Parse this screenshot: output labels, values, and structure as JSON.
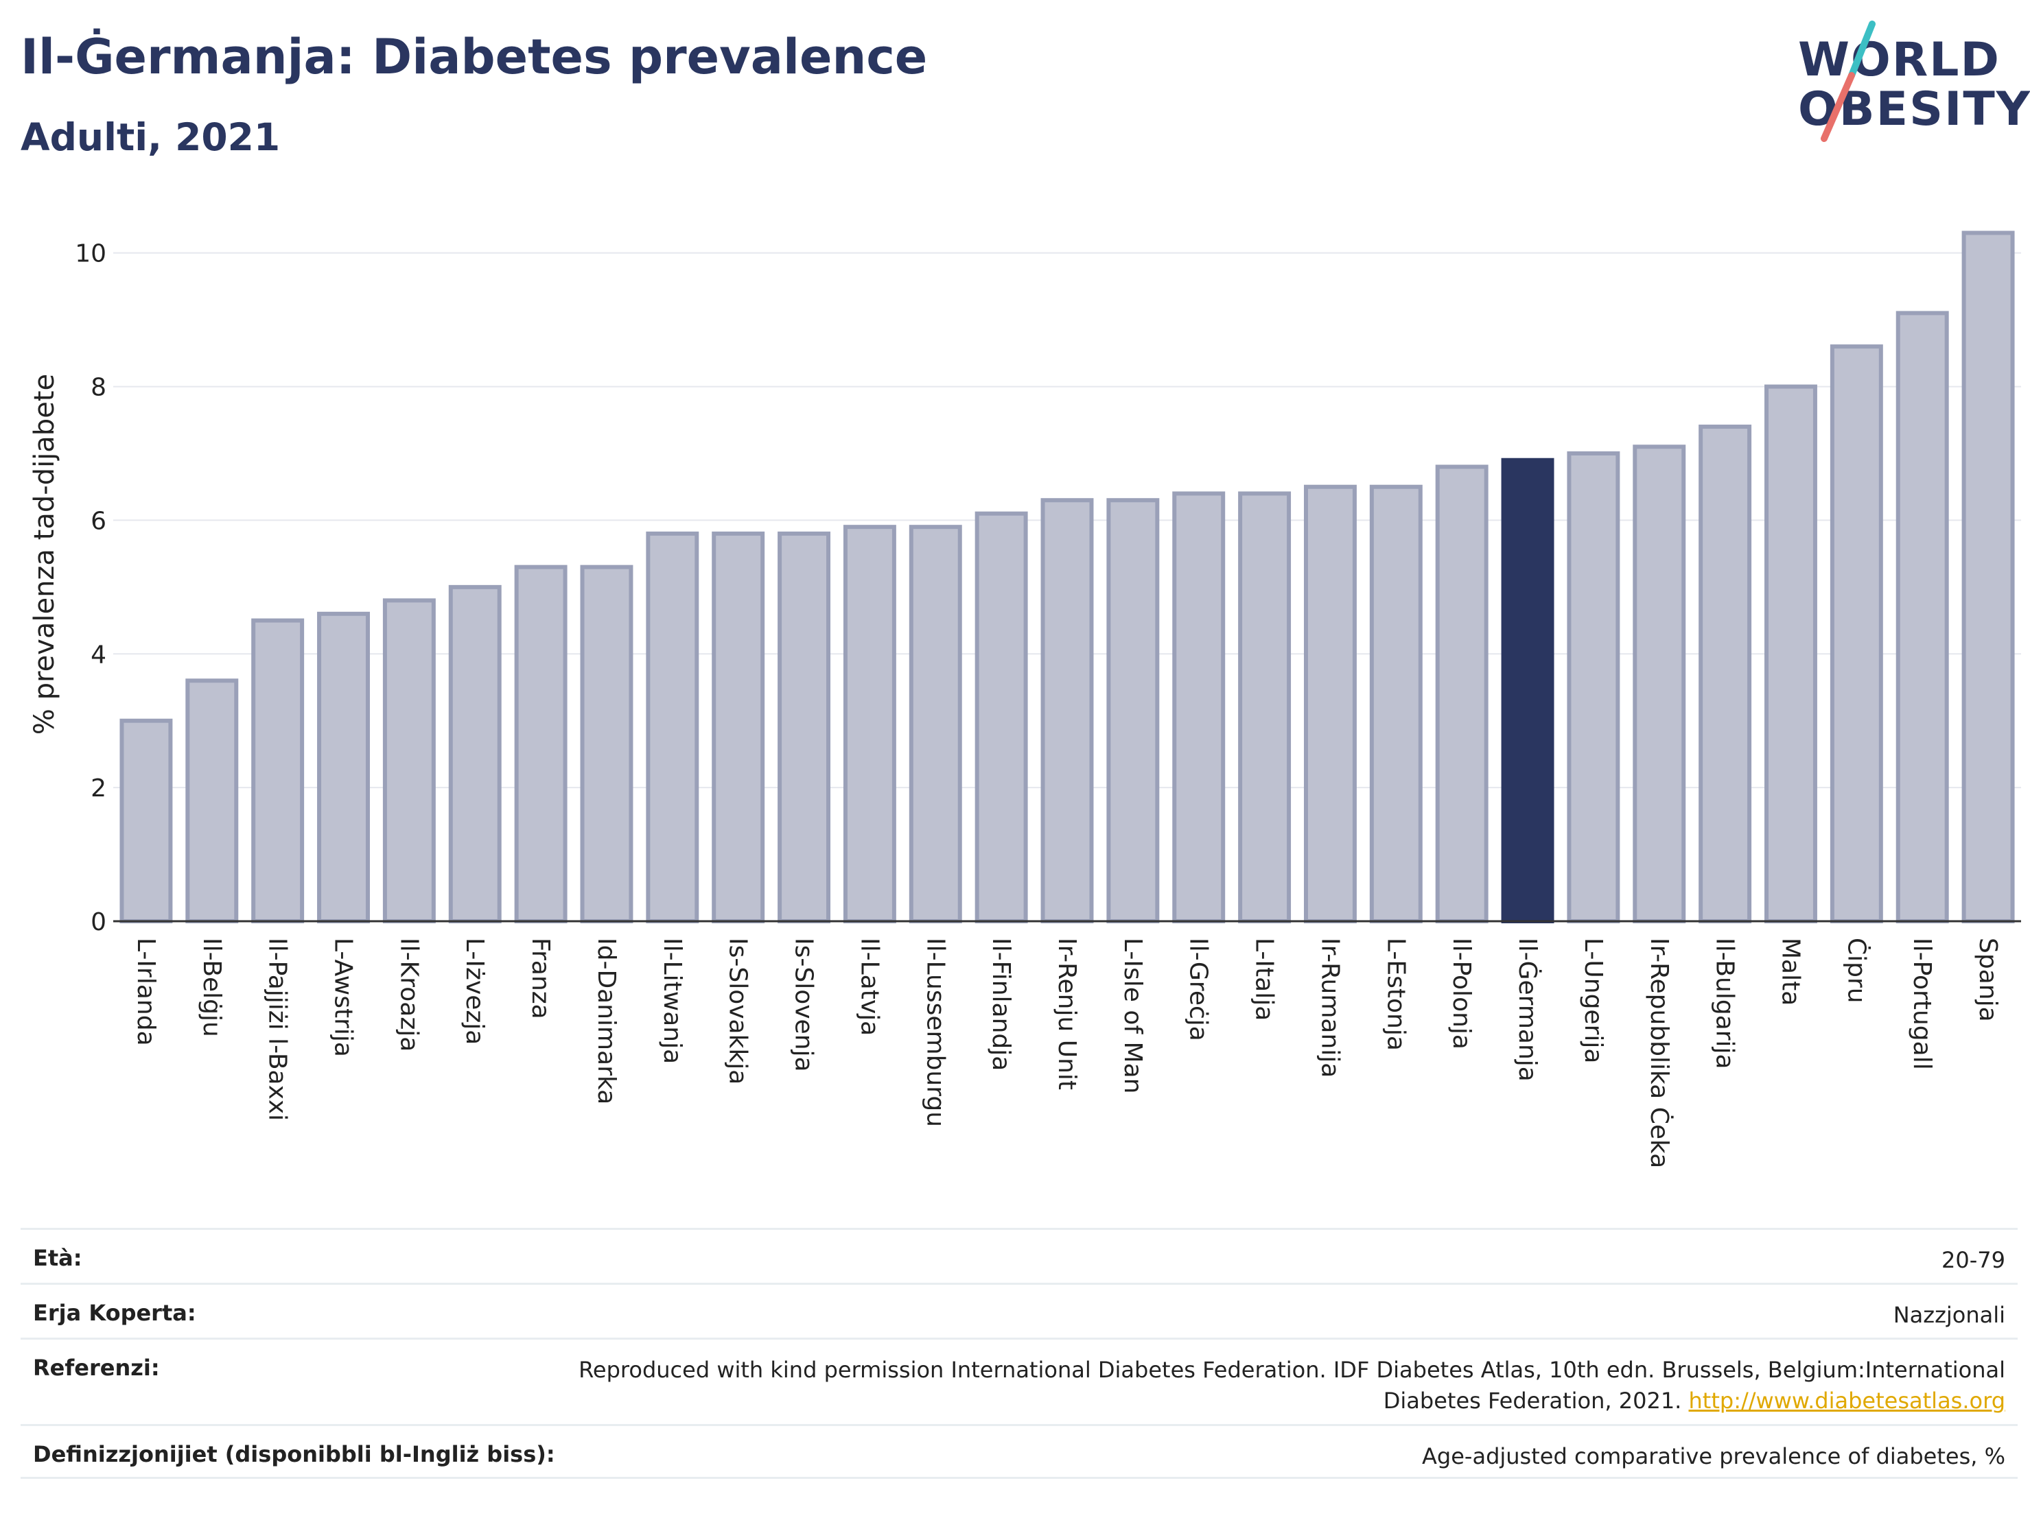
{
  "header": {
    "title": "Il-Ġermanja: Diabetes prevalence",
    "subtitle": "Adulti, 2021"
  },
  "logo": {
    "line1": "WORLD",
    "line2": "OBESITY"
  },
  "colors": {
    "bar": "#bec1d0",
    "bar_stroke": "#9aa0b8",
    "highlight": "#2a3660",
    "title": "#2a3660",
    "grid": "#e6e8ee",
    "link": "#e0a800"
  },
  "chart_data": {
    "type": "bar",
    "ylabel": "% prevalenza tad-dijabete",
    "xlabel": "",
    "ylim": [
      0,
      10.5
    ],
    "yticks": [
      0,
      2,
      4,
      6,
      8,
      10
    ],
    "grid": true,
    "highlight": "Il-Ġermanja",
    "categories": [
      "L-Irlanda",
      "Il-Belġju",
      "Il-Pajjiżi l-Baxxi",
      "L-Awstrija",
      "Il-Kroazja",
      "L-Iżvezja",
      "Franza",
      "Id-Danimarka",
      "Il-Litwanja",
      "Is-Slovakkja",
      "Is-Slovenja",
      "Il-Latvja",
      "Il-Lussemburgu",
      "Il-Finlandja",
      "Ir-Renju Unit",
      "L-Isle of Man",
      "Il-Greċja",
      "L-Italja",
      "Ir-Rumanija",
      "L-Estonja",
      "Il-Polonja",
      "Il-Ġermanja",
      "L-Ungerija",
      "Ir-Repubblika Ċeka",
      "Il-Bulgarija",
      "Malta",
      "Ċipru",
      "Il-Portugall",
      "Spanja"
    ],
    "values": [
      3.0,
      3.6,
      4.5,
      4.6,
      4.8,
      5.0,
      5.3,
      5.3,
      5.8,
      5.8,
      5.8,
      5.9,
      5.9,
      6.1,
      6.3,
      6.3,
      6.4,
      6.4,
      6.5,
      6.5,
      6.8,
      6.9,
      7.0,
      7.1,
      7.4,
      8.0,
      8.6,
      9.1,
      10.3
    ]
  },
  "meta": [
    {
      "key": "Età:",
      "value": "20-79"
    },
    {
      "key": "Erja Koperta:",
      "value": "Nazzjonali"
    },
    {
      "key": "Referenzi:",
      "value": "Reproduced with kind permission International Diabetes Federation.  IDF Diabetes Atlas, 10th edn. Brussels, Belgium:International Diabetes Federation, 2021.",
      "link": "http://www.diabetesatlas.org"
    },
    {
      "key": "Definizzjonijiet (disponibbli bl-Ingliż biss):",
      "value": "Age-adjusted comparative prevalence of diabetes, %"
    }
  ]
}
